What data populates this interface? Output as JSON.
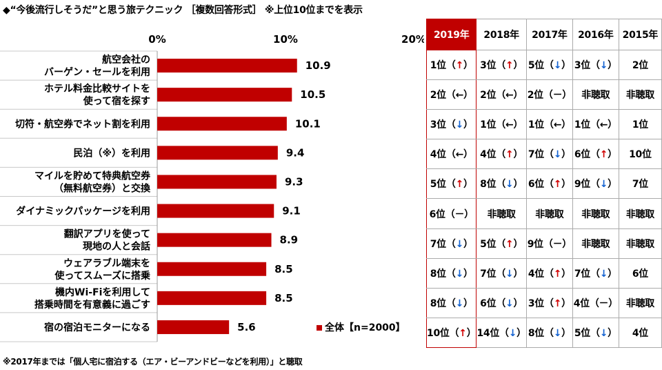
{
  "title": "◆“今後流行しそうだ”と思う旅テクニック ［複数回答形式］ ※上位10位までを表示",
  "footnote": "※2017年までは「個人宅に宿泊する（エア・ビーアンドビーなどを利用）」と聴取",
  "colors": {
    "bar": "#c00000",
    "highlight": "#c00000",
    "up": "#d00000",
    "down": "#1060d0"
  },
  "chart_data": {
    "type": "bar",
    "orientation": "horizontal",
    "categories": [
      [
        "航空会社の",
        "バーゲン・セールを利用"
      ],
      [
        "ホテル料金比較サイトを",
        "使って宿を探す"
      ],
      [
        "切符・航空券でネット割を利用"
      ],
      [
        "民泊（※）を利用"
      ],
      [
        "マイルを貯めて特典航空券",
        "（無料航空券）と交換"
      ],
      [
        "ダイナミックパッケージを利用"
      ],
      [
        "翻訳アプリを使って",
        "現地の人と会話"
      ],
      [
        "ウェアラブル端末を",
        "使ってスムーズに搭乗"
      ],
      [
        "機内Wi-Fiを利用して",
        "搭乗時間を有意義に過ごす"
      ],
      [
        "宿の宿泊モニターになる"
      ]
    ],
    "series": [
      {
        "name": "全体【n=2000】",
        "values": [
          10.9,
          10.5,
          10.1,
          9.4,
          9.3,
          9.1,
          8.9,
          8.5,
          8.5,
          5.6
        ]
      }
    ],
    "value_labels": [
      "10.9",
      "10.5",
      "10.1",
      "9.4",
      "9.3",
      "9.1",
      "8.9",
      "8.5",
      "8.5",
      "5.6"
    ],
    "xlim": [
      0,
      20
    ],
    "xticks": [
      0,
      10,
      20
    ],
    "xtick_labels": [
      "0%",
      "10%",
      "20%"
    ],
    "legend_position": "bottom-right",
    "grid": false
  },
  "rank_table": {
    "headers": [
      "2019年",
      "2018年",
      "2017年",
      "2016年",
      "2015年"
    ],
    "rows": [
      [
        {
          "r": "1位",
          "a": "↑",
          "d": "up"
        },
        {
          "r": "3位",
          "a": "↑",
          "d": "up"
        },
        {
          "r": "5位",
          "a": "↓",
          "d": "down"
        },
        {
          "r": "3位",
          "a": "↓",
          "d": "down"
        },
        {
          "r": "2位"
        }
      ],
      [
        {
          "r": "2位",
          "a": "←",
          "d": "left"
        },
        {
          "r": "2位",
          "a": "←",
          "d": "left"
        },
        {
          "r": "2位",
          "a": "－",
          "d": "flat"
        },
        {
          "r": "非聴取"
        },
        {
          "r": "非聴取"
        }
      ],
      [
        {
          "r": "3位",
          "a": "↓",
          "d": "down"
        },
        {
          "r": "1位",
          "a": "←",
          "d": "left"
        },
        {
          "r": "1位",
          "a": "←",
          "d": "left"
        },
        {
          "r": "1位",
          "a": "←",
          "d": "left"
        },
        {
          "r": "1位"
        }
      ],
      [
        {
          "r": "4位",
          "a": "←",
          "d": "left"
        },
        {
          "r": "4位",
          "a": "↑",
          "d": "up"
        },
        {
          "r": "7位",
          "a": "↓",
          "d": "down"
        },
        {
          "r": "6位",
          "a": "↑",
          "d": "up"
        },
        {
          "r": "10位"
        }
      ],
      [
        {
          "r": "5位",
          "a": "↑",
          "d": "up"
        },
        {
          "r": "8位",
          "a": "↓",
          "d": "down"
        },
        {
          "r": "6位",
          "a": "↑",
          "d": "up"
        },
        {
          "r": "9位",
          "a": "↓",
          "d": "down"
        },
        {
          "r": "7位"
        }
      ],
      [
        {
          "r": "6位",
          "a": "－",
          "d": "flat"
        },
        {
          "r": "非聴取"
        },
        {
          "r": "非聴取"
        },
        {
          "r": "非聴取"
        },
        {
          "r": "非聴取"
        }
      ],
      [
        {
          "r": "7位",
          "a": "↓",
          "d": "down"
        },
        {
          "r": "5位",
          "a": "↑",
          "d": "up"
        },
        {
          "r": "9位",
          "a": "－",
          "d": "flat"
        },
        {
          "r": "非聴取"
        },
        {
          "r": "非聴取"
        }
      ],
      [
        {
          "r": "8位",
          "a": "↓",
          "d": "down"
        },
        {
          "r": "7位",
          "a": "↓",
          "d": "down"
        },
        {
          "r": "4位",
          "a": "↑",
          "d": "up"
        },
        {
          "r": "7位",
          "a": "↓",
          "d": "down"
        },
        {
          "r": "6位"
        }
      ],
      [
        {
          "r": "8位",
          "a": "↓",
          "d": "down"
        },
        {
          "r": "6位",
          "a": "↓",
          "d": "down"
        },
        {
          "r": "3位",
          "a": "↑",
          "d": "up"
        },
        {
          "r": "4位",
          "a": "－",
          "d": "flat"
        },
        {
          "r": "非聴取"
        }
      ],
      [
        {
          "r": "10位",
          "a": "↑",
          "d": "up"
        },
        {
          "r": "14位",
          "a": "↓",
          "d": "down"
        },
        {
          "r": "8位",
          "a": "↓",
          "d": "down"
        },
        {
          "r": "5位",
          "a": "↓",
          "d": "down"
        },
        {
          "r": "4位"
        }
      ]
    ]
  }
}
